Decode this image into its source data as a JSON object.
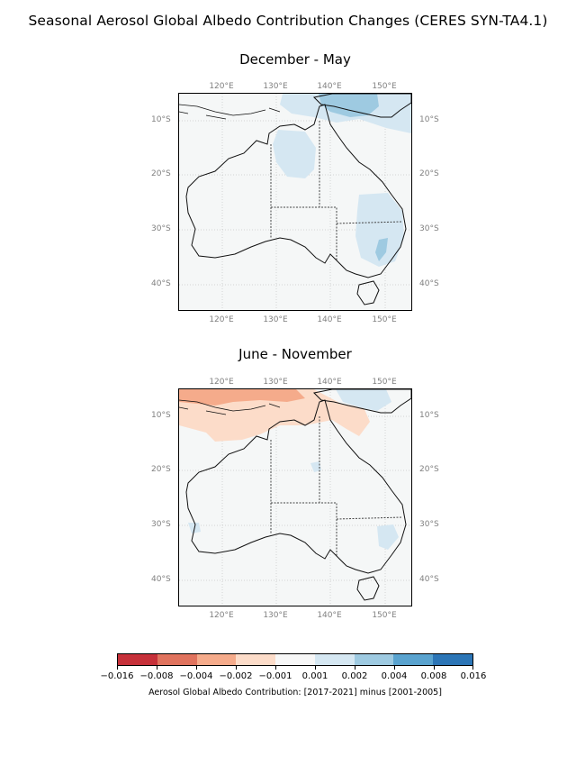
{
  "title": "Seasonal Aerosol Global Albedo Contribution Changes  (CERES SYN-TA4.1)",
  "panels": [
    {
      "title": "December - May"
    },
    {
      "title": "June - November"
    }
  ],
  "lon_ticks": [
    "120°E",
    "130°E",
    "140°E",
    "150°E"
  ],
  "lat_ticks": [
    "10°S",
    "20°S",
    "30°S",
    "40°S"
  ],
  "extent": {
    "lon": [
      112,
      155
    ],
    "lat": [
      -45,
      -5
    ]
  },
  "colorbar": {
    "labels": [
      "−0.016",
      "−0.008",
      "−0.004",
      "−0.002",
      "−0.001",
      "0.001",
      "0.002",
      "0.004",
      "0.008",
      "0.016"
    ],
    "colors": [
      "#c6313a",
      "#e0735e",
      "#f5ab8b",
      "#fcdcc9",
      "#f7f7f7",
      "#d5e7f2",
      "#9ecae1",
      "#5aa3cf",
      "#2c75b6"
    ],
    "label": "Aerosol Global Albedo Contribution: [2017-2021] minus [2001-2005]"
  }
}
